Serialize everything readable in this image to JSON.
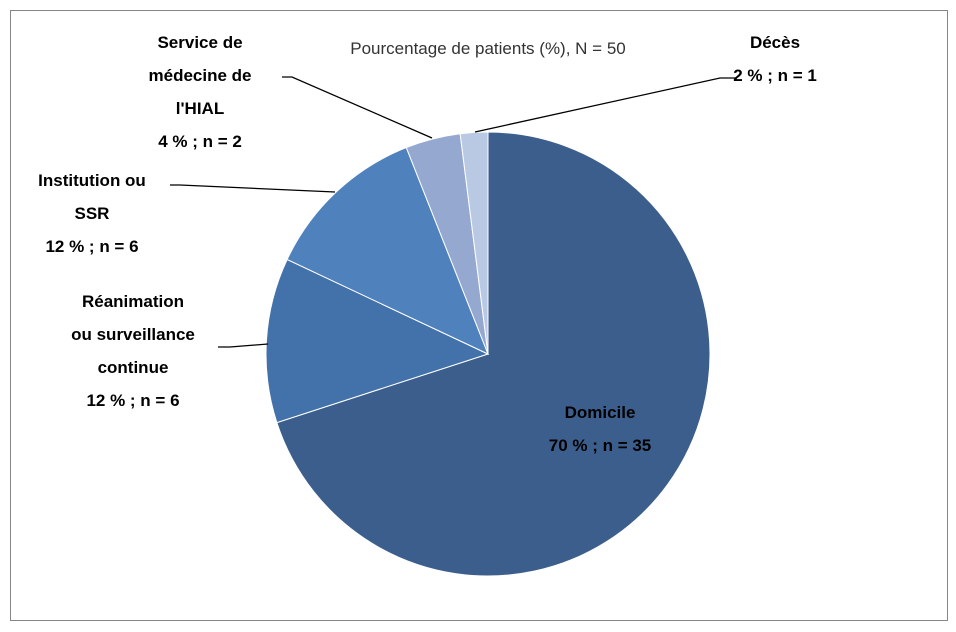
{
  "chart_data": {
    "type": "pie",
    "title": "Pourcentage de patients (%), N = 50",
    "categories": [
      "Domicile",
      "Réanimation\nou surveillance\ncontinue",
      "Institution ou\nSSR",
      "Service de\nmédecine de\nl'HIAL",
      "Décès"
    ],
    "values": [
      70,
      12,
      12,
      4,
      2
    ],
    "value_labels": [
      "70 % ; n = 35",
      "12 % ; n = 6",
      "12 % ; n = 6",
      "4 % ; n = 2",
      "2 % ; n = 1"
    ],
    "colors": [
      "#3b5e8c",
      "#4371aa",
      "#4f81bd",
      "#95a9d0",
      "#b9c8e3"
    ]
  }
}
